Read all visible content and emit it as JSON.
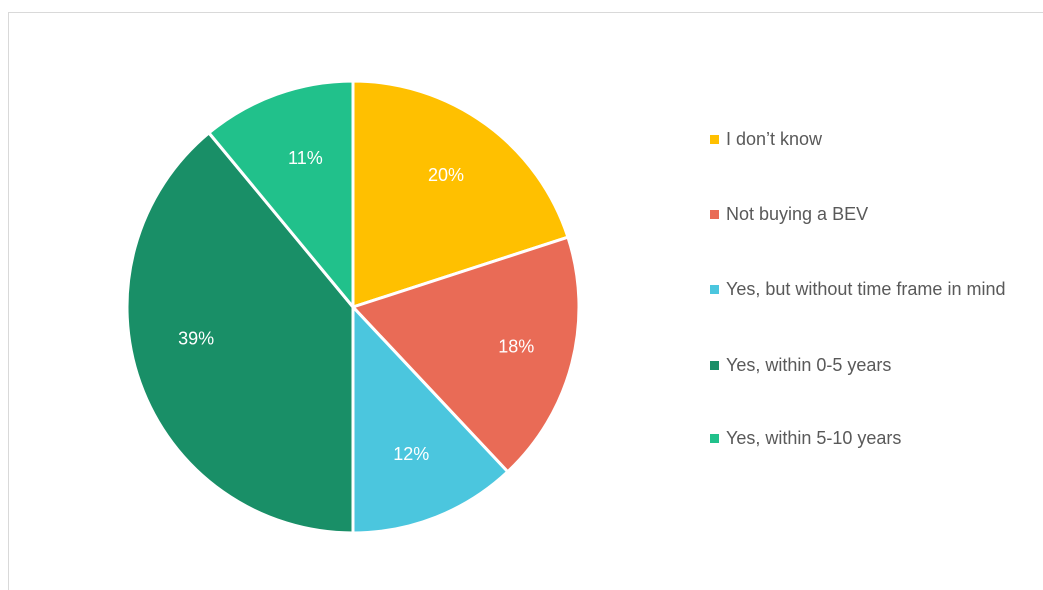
{
  "chart_data": {
    "type": "pie",
    "categories": [
      "I don’t know",
      "Not buying a BEV",
      "Yes, but without time frame in mind",
      "Yes, within 0-5 years",
      "Yes, within 5-10 years"
    ],
    "values": [
      20,
      18,
      12,
      39,
      11
    ],
    "data_labels": [
      "20%",
      "18%",
      "12%",
      "39%",
      "11%"
    ],
    "colors": [
      "#FFC000",
      "#E96B56",
      "#4BC6DE",
      "#198F67",
      "#21C18B"
    ],
    "start_angle_deg": 0,
    "direction": "clockwise",
    "legend_position": "right"
  }
}
